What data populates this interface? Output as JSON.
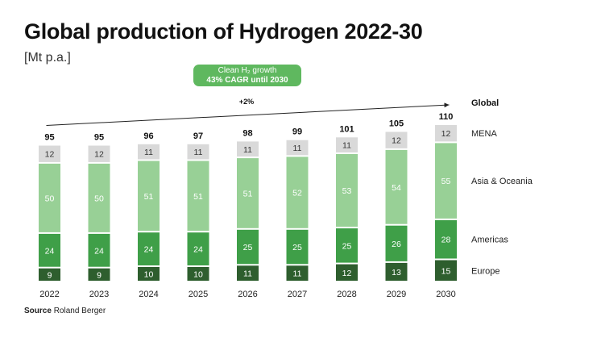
{
  "title": "Global production of Hydrogen 2022-30",
  "unit": "[Mt p.a.]",
  "callout": {
    "line1": "Clean H₂ growth",
    "line2": "43% CAGR until 2030"
  },
  "growth_label": "+2%",
  "source": {
    "label": "Source",
    "text": "Roland Berger"
  },
  "colors": {
    "europe": "#2e5e2e",
    "americas": "#3f9f48",
    "asia_oceania": "#98d096",
    "mena": "#d9d9d9",
    "callout": "#5fb85f"
  },
  "chart_data": {
    "type": "bar",
    "stacked": true,
    "categories": [
      "2022",
      "2023",
      "2024",
      "2025",
      "2026",
      "2027",
      "2028",
      "2029",
      "2030"
    ],
    "series": [
      {
        "name": "Europe",
        "values": [
          9,
          9,
          10,
          10,
          11,
          11,
          12,
          13,
          15
        ]
      },
      {
        "name": "Americas",
        "values": [
          24,
          24,
          24,
          24,
          25,
          25,
          25,
          26,
          28
        ]
      },
      {
        "name": "Asia & Oceania",
        "values": [
          50,
          50,
          51,
          51,
          51,
          52,
          53,
          54,
          55
        ]
      },
      {
        "name": "MENA",
        "values": [
          12,
          12,
          11,
          11,
          11,
          11,
          11,
          12,
          12
        ]
      }
    ],
    "totals_label": "Global",
    "totals": [
      95,
      95,
      96,
      97,
      98,
      99,
      101,
      105,
      110
    ],
    "legend_position": "right",
    "grid": false
  }
}
